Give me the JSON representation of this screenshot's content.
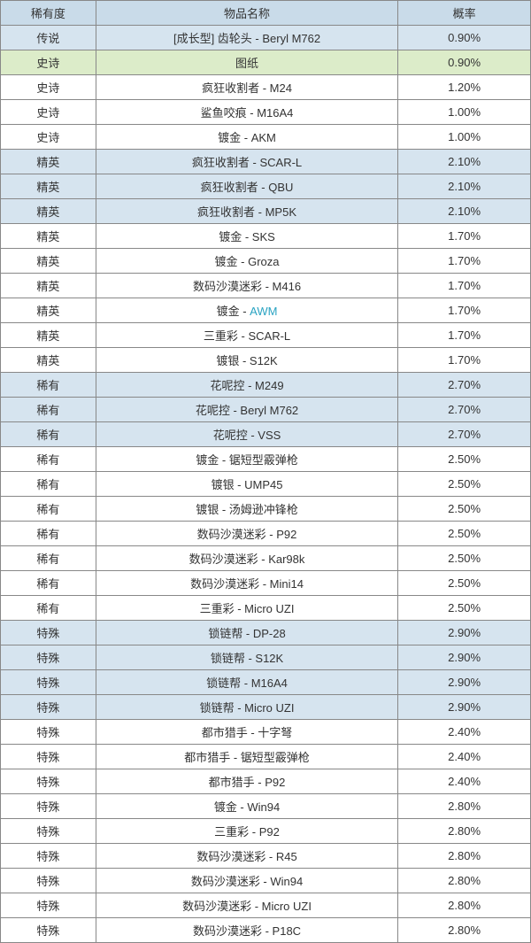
{
  "colors": {
    "header_bg": "#c9dbe9",
    "row_white": "#ffffff",
    "row_blue": "#d6e4ef",
    "row_green": "#dcecc9",
    "border": "#888888",
    "text": "#333333",
    "link": "#29a3c2"
  },
  "columns": [
    {
      "key": "rarity",
      "label": "稀有度"
    },
    {
      "key": "name",
      "label": "物品名称"
    },
    {
      "key": "prob",
      "label": "概率"
    }
  ],
  "rows": [
    {
      "rarity": "传说",
      "name": "[成长型] 齿轮头 - Beryl M762",
      "prob": "0.90%",
      "bg": "row_blue"
    },
    {
      "rarity": "史诗",
      "name": "图纸",
      "prob": "0.90%",
      "bg": "row_green"
    },
    {
      "rarity": "史诗",
      "name": "疯狂收割者 - M24",
      "prob": "1.20%",
      "bg": "row_white"
    },
    {
      "rarity": "史诗",
      "name": "鲨鱼咬痕 - M16A4",
      "prob": "1.00%",
      "bg": "row_white"
    },
    {
      "rarity": "史诗",
      "name": "镀金 - AKM",
      "prob": "1.00%",
      "bg": "row_white"
    },
    {
      "rarity": "精英",
      "name": "疯狂收割者 - SCAR-L",
      "prob": "2.10%",
      "bg": "row_blue"
    },
    {
      "rarity": "精英",
      "name": "疯狂收割者 - QBU",
      "prob": "2.10%",
      "bg": "row_blue"
    },
    {
      "rarity": "精英",
      "name": "疯狂收割者 - MP5K",
      "prob": "2.10%",
      "bg": "row_blue"
    },
    {
      "rarity": "精英",
      "name": "镀金 - SKS",
      "prob": "1.70%",
      "bg": "row_white"
    },
    {
      "rarity": "精英",
      "name": "镀金 - Groza",
      "prob": "1.70%",
      "bg": "row_white"
    },
    {
      "rarity": "精英",
      "name": "数码沙漠迷彩 - M416",
      "prob": "1.70%",
      "bg": "row_white"
    },
    {
      "rarity": "精英",
      "name_prefix": "镀金 - ",
      "name_link": "AWM",
      "prob": "1.70%",
      "bg": "row_white"
    },
    {
      "rarity": "精英",
      "name": "三重彩 - SCAR-L",
      "prob": "1.70%",
      "bg": "row_white"
    },
    {
      "rarity": "精英",
      "name": "镀银 - S12K",
      "prob": "1.70%",
      "bg": "row_white"
    },
    {
      "rarity": "稀有",
      "name": "花呢控 - M249",
      "prob": "2.70%",
      "bg": "row_blue"
    },
    {
      "rarity": "稀有",
      "name": "花呢控 - Beryl M762",
      "prob": "2.70%",
      "bg": "row_blue"
    },
    {
      "rarity": "稀有",
      "name": "花呢控 - VSS",
      "prob": "2.70%",
      "bg": "row_blue"
    },
    {
      "rarity": "稀有",
      "name": "镀金 - 锯短型霰弹枪",
      "prob": "2.50%",
      "bg": "row_white"
    },
    {
      "rarity": "稀有",
      "name": "镀银 - UMP45",
      "prob": "2.50%",
      "bg": "row_white"
    },
    {
      "rarity": "稀有",
      "name": "镀银 - 汤姆逊冲锋枪",
      "prob": "2.50%",
      "bg": "row_white"
    },
    {
      "rarity": "稀有",
      "name": "数码沙漠迷彩 - P92",
      "prob": "2.50%",
      "bg": "row_white"
    },
    {
      "rarity": "稀有",
      "name": "数码沙漠迷彩 - Kar98k",
      "prob": "2.50%",
      "bg": "row_white"
    },
    {
      "rarity": "稀有",
      "name": "数码沙漠迷彩 - Mini14",
      "prob": "2.50%",
      "bg": "row_white"
    },
    {
      "rarity": "稀有",
      "name": "三重彩 - Micro UZI",
      "prob": "2.50%",
      "bg": "row_white"
    },
    {
      "rarity": "特殊",
      "name": "锁链帮 - DP-28",
      "prob": "2.90%",
      "bg": "row_blue"
    },
    {
      "rarity": "特殊",
      "name": "锁链帮 - S12K",
      "prob": "2.90%",
      "bg": "row_blue"
    },
    {
      "rarity": "特殊",
      "name": "锁链帮 - M16A4",
      "prob": "2.90%",
      "bg": "row_blue"
    },
    {
      "rarity": "特殊",
      "name": "锁链帮 - Micro UZI",
      "prob": "2.90%",
      "bg": "row_blue"
    },
    {
      "rarity": "特殊",
      "name": "都市猎手 - 十字弩",
      "prob": "2.40%",
      "bg": "row_white"
    },
    {
      "rarity": "特殊",
      "name": "都市猎手 - 锯短型霰弹枪",
      "prob": "2.40%",
      "bg": "row_white"
    },
    {
      "rarity": "特殊",
      "name": "都市猎手 - P92",
      "prob": "2.40%",
      "bg": "row_white"
    },
    {
      "rarity": "特殊",
      "name": "镀金 - Win94",
      "prob": "2.80%",
      "bg": "row_white"
    },
    {
      "rarity": "特殊",
      "name": "三重彩 - P92",
      "prob": "2.80%",
      "bg": "row_white"
    },
    {
      "rarity": "特殊",
      "name": "数码沙漠迷彩 - R45",
      "prob": "2.80%",
      "bg": "row_white"
    },
    {
      "rarity": "特殊",
      "name": "数码沙漠迷彩 - Win94",
      "prob": "2.80%",
      "bg": "row_white"
    },
    {
      "rarity": "特殊",
      "name": "数码沙漠迷彩 - Micro UZI",
      "prob": "2.80%",
      "bg": "row_white"
    },
    {
      "rarity": "特殊",
      "name": "数码沙漠迷彩 - P18C",
      "prob": "2.80%",
      "bg": "row_white"
    }
  ]
}
